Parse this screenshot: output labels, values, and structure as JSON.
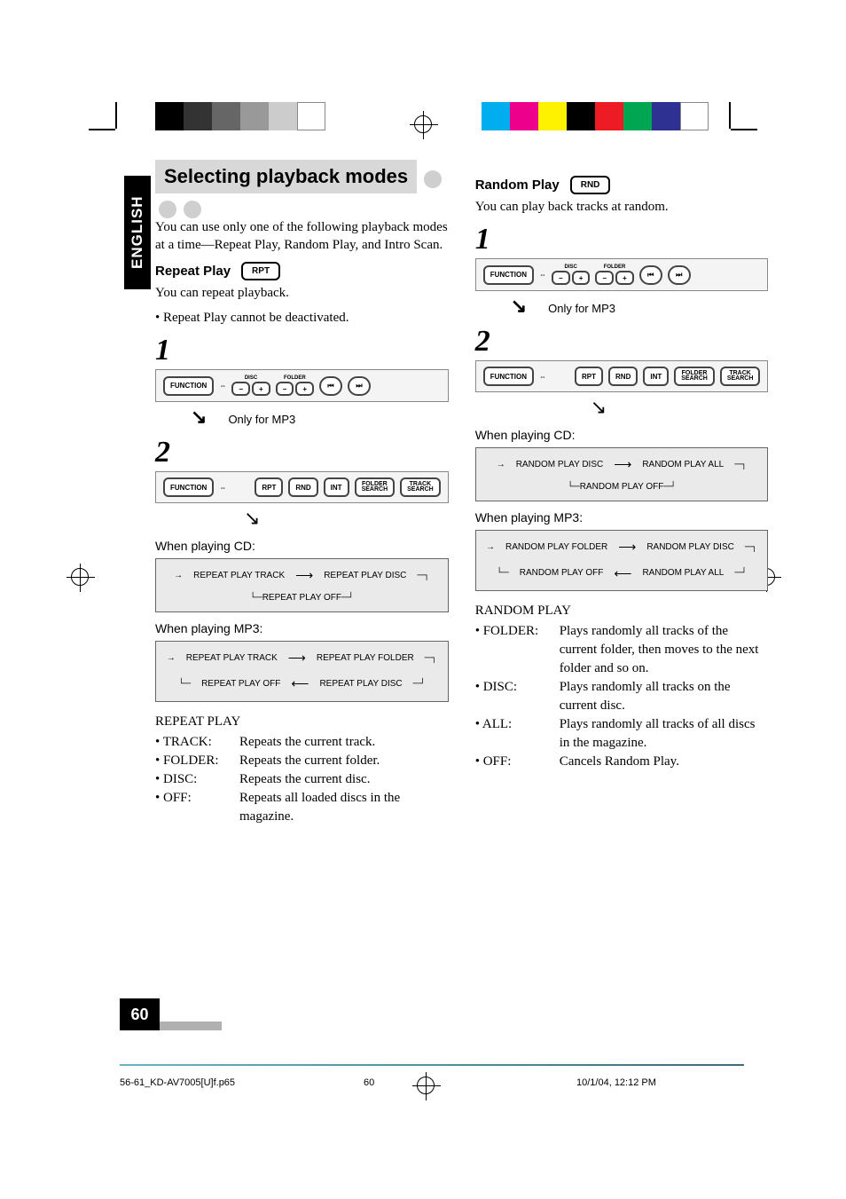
{
  "lang_tab": "ENGLISH",
  "color_bar_left": [
    "#000000",
    "#333333",
    "#666666",
    "#999999",
    "#cccccc",
    "#ffffff"
  ],
  "color_bar_right": [
    "#00aeef",
    "#ec008c",
    "#fff200",
    "#000000",
    "#ed1c24",
    "#00a651",
    "#2e3192",
    "#ffffff"
  ],
  "section": {
    "title": "Selecting playback modes",
    "intro": "You can use only one of the following playback modes at a time—Repeat Play, Random Play, and Intro Scan."
  },
  "repeat": {
    "label": "Repeat Play",
    "btn": "RPT",
    "line1": "You can repeat playback.",
    "bullet1": "• Repeat Play cannot be deactivated.",
    "step1": "1",
    "step2": "2",
    "mp3_note": "Only for MP3",
    "panel1": {
      "function": "FUNCTION",
      "disc": "DISC",
      "folder": "FOLDER"
    },
    "panel2": {
      "function": "FUNCTION",
      "buttons": [
        "RPT",
        "RND",
        "INT"
      ],
      "stacks": [
        [
          "FOLDER",
          "SEARCH"
        ],
        [
          "TRACK",
          "SEARCH"
        ]
      ]
    },
    "cd_caption": "When playing CD:",
    "cd_flow": [
      "REPEAT PLAY TRACK",
      "REPEAT PLAY DISC",
      "REPEAT PLAY OFF"
    ],
    "mp3_caption": "When playing MP3:",
    "mp3_flow_r1": [
      "REPEAT PLAY TRACK",
      "REPEAT PLAY FOLDER"
    ],
    "mp3_flow_r2": [
      "REPEAT PLAY OFF",
      "REPEAT PLAY DISC"
    ],
    "list_hdr": "REPEAT PLAY",
    "items": [
      {
        "k": "• TRACK:",
        "v": "Repeats the current track."
      },
      {
        "k": "• FOLDER:",
        "v": "Repeats the current folder."
      },
      {
        "k": "• DISC:",
        "v": "Repeats the current disc."
      },
      {
        "k": "• OFF:",
        "v": "Repeats all loaded discs in the magazine."
      }
    ]
  },
  "random": {
    "label": "Random Play",
    "btn": "RND",
    "line1": "You can play back tracks at random.",
    "step1": "1",
    "step2": "2",
    "mp3_note": "Only for MP3",
    "cd_caption": "When playing CD:",
    "cd_flow": [
      "RANDOM PLAY DISC",
      "RANDOM PLAY ALL",
      "RANDOM PLAY OFF"
    ],
    "mp3_caption": "When playing MP3:",
    "mp3_flow_r1": [
      "RANDOM PLAY FOLDER",
      "RANDOM PLAY DISC"
    ],
    "mp3_flow_r2": [
      "RANDOM PLAY OFF",
      "RANDOM PLAY ALL"
    ],
    "list_hdr": "RANDOM PLAY",
    "items": [
      {
        "k": "• FOLDER:",
        "v": "Plays randomly all tracks of the current folder, then moves to the next folder and so on."
      },
      {
        "k": "• DISC:",
        "v": "Plays randomly all tracks on the current disc."
      },
      {
        "k": "• ALL:",
        "v": "Plays randomly all tracks of all discs in the magazine."
      },
      {
        "k": "• OFF:",
        "v": "Cancels Random Play."
      }
    ]
  },
  "page_number": "60",
  "footer": {
    "file": "56-61_KD-AV7005[U]f.p65",
    "page": "60",
    "date": "10/1/04, 12:12 PM"
  }
}
